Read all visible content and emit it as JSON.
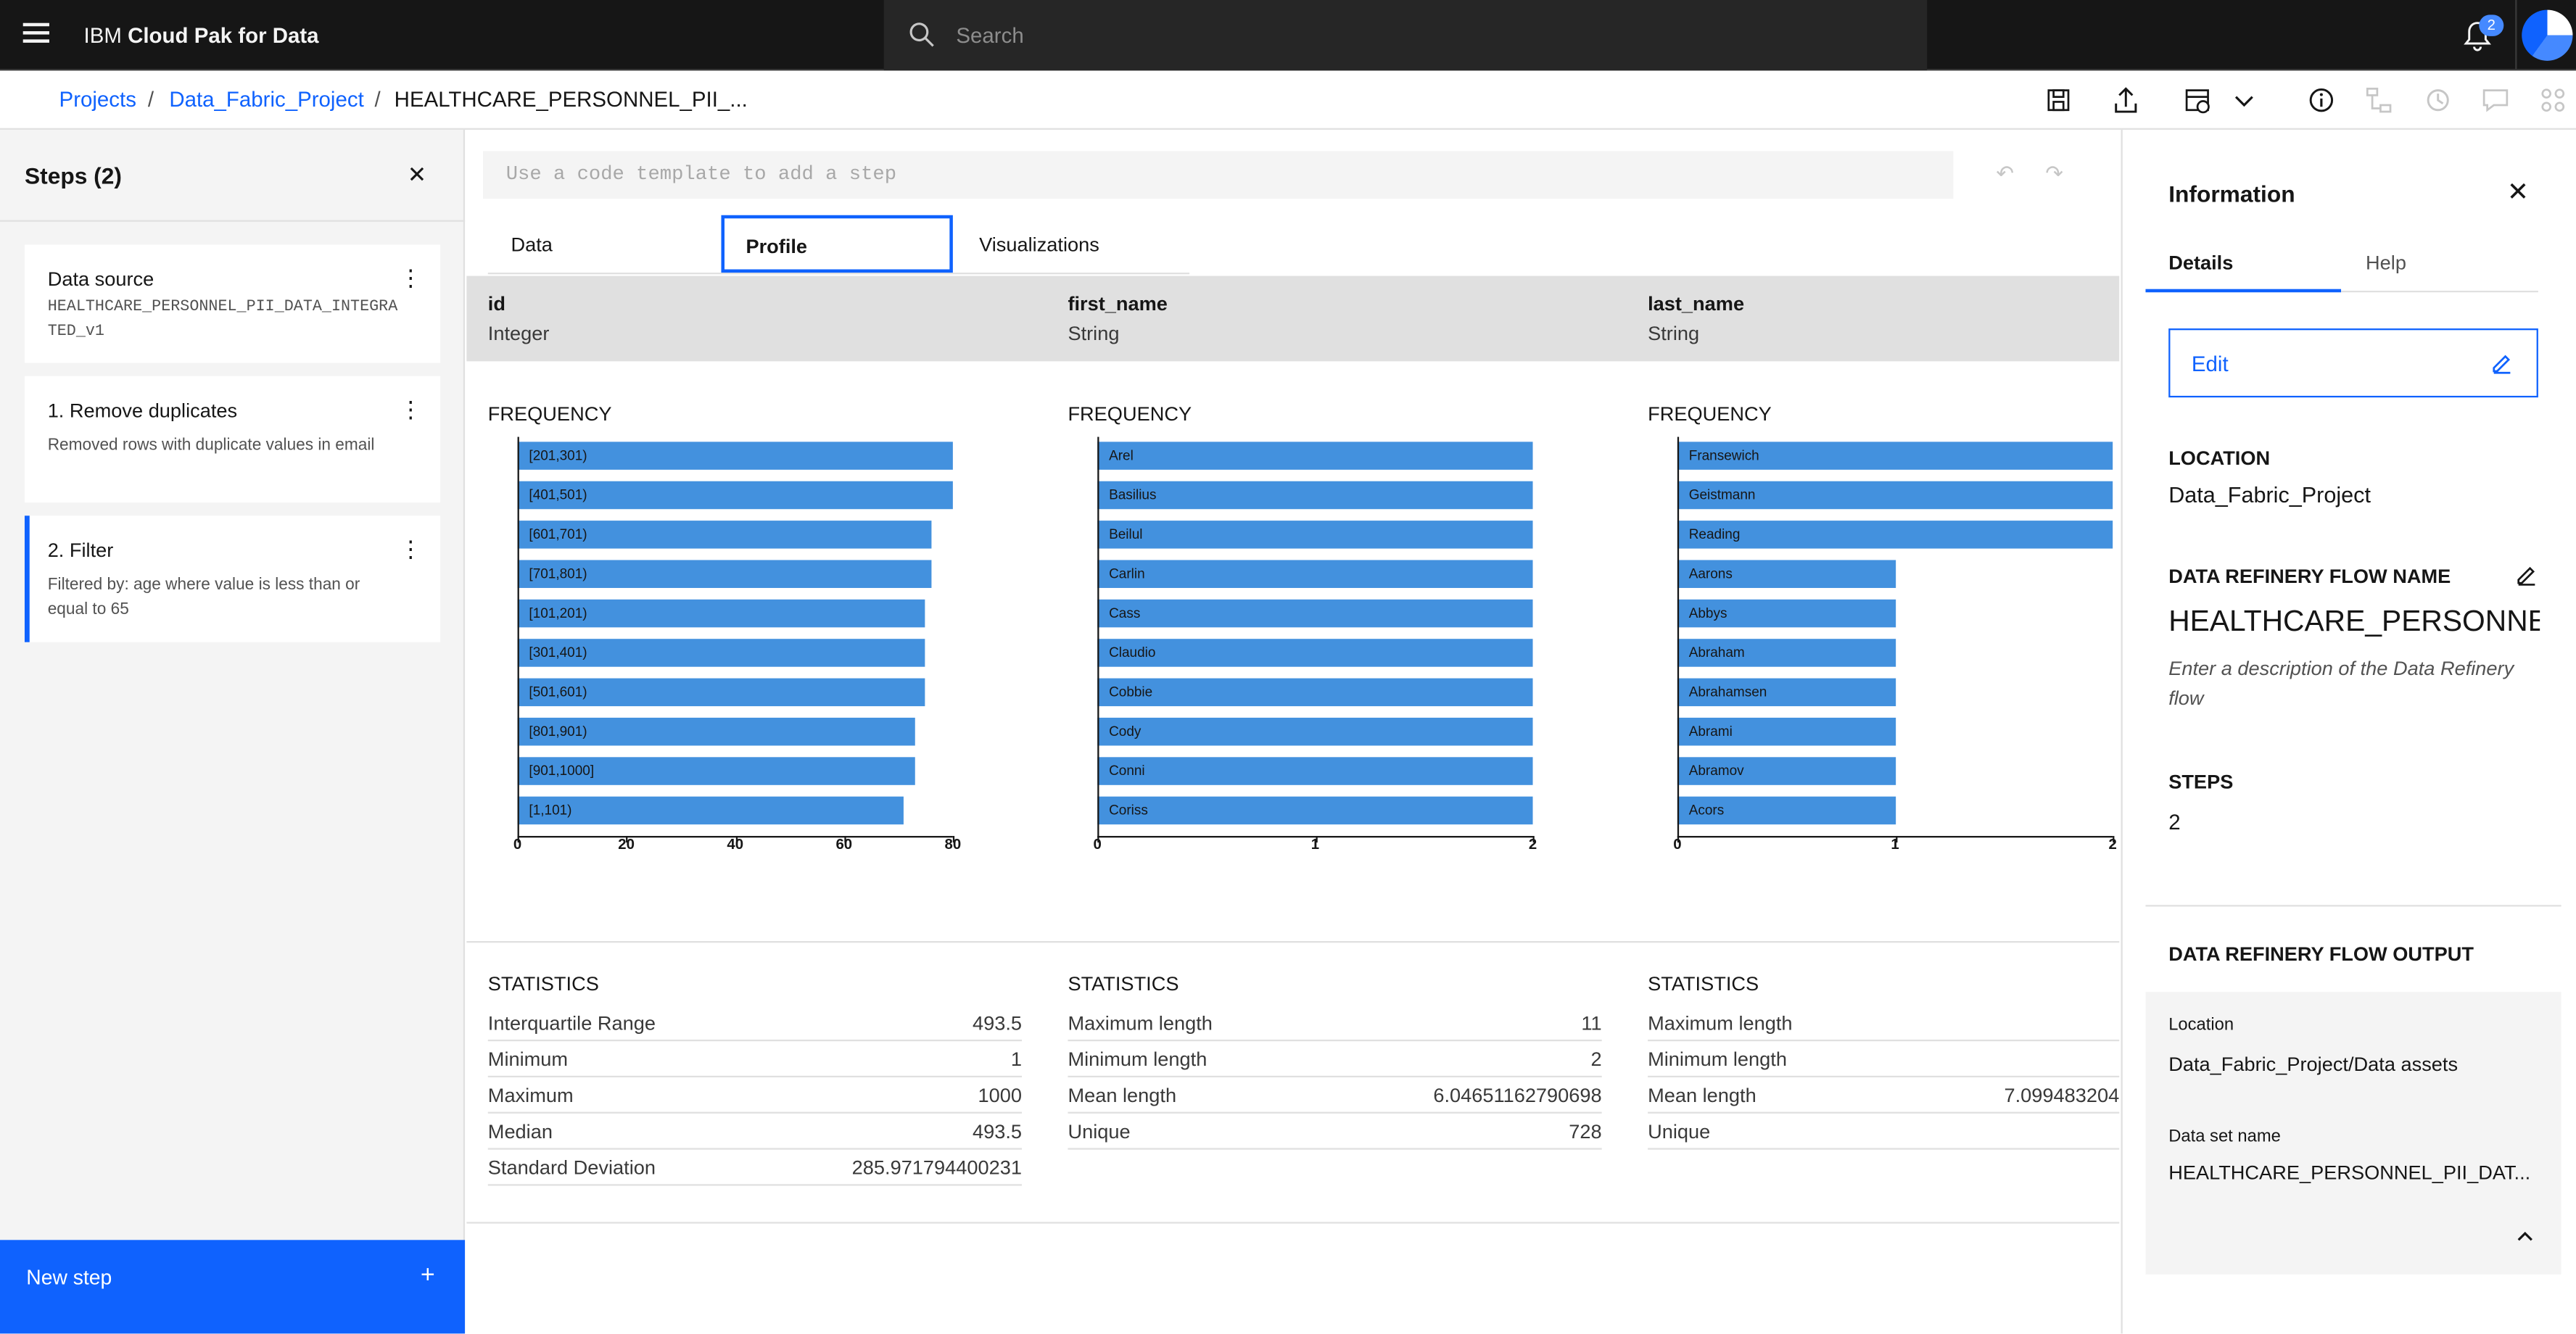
{
  "header": {
    "brand_prefix": "IBM ",
    "brand_name": "Cloud Pak for Data",
    "search_placeholder": "Search",
    "notification_count": "2"
  },
  "breadcrumb": {
    "items": [
      "Projects",
      "Data_Fabric_Project"
    ],
    "separator": "/",
    "current": "HEALTHCARE_PERSONNEL_PII_..."
  },
  "steps_panel": {
    "title": "Steps (2)",
    "cards": [
      {
        "title": "Data source",
        "desc": "HEALTHCARE_PERSONNEL_PII_DATA_INTEGRATED_v1"
      },
      {
        "title": "1. Remove duplicates",
        "desc": "Removed rows with duplicate values in email"
      },
      {
        "title": "2. Filter",
        "desc": "Filtered by: age where value is less than or equal to 65"
      }
    ],
    "new_step": "New step"
  },
  "code_template_placeholder": "Use a code template to add a step",
  "tabs": [
    "Data",
    "Profile",
    "Visualizations"
  ],
  "frequency_label": "FREQUENCY",
  "statistics_label": "STATISTICS",
  "columns": [
    {
      "name": "id",
      "type": "Integer",
      "freq": {
        "max": 80,
        "ticks": [
          0,
          20,
          40,
          60,
          80
        ],
        "labels": [
          "[201,301)",
          "[401,501)",
          "[601,701)",
          "[701,801)",
          "[101,201)",
          "[301,401)",
          "[501,601)",
          "[801,901)",
          "[901,1000]",
          "[1,101)"
        ],
        "values": [
          80,
          80,
          76,
          76,
          75,
          75,
          75,
          73,
          73,
          71
        ]
      },
      "stats": [
        [
          "Interquartile Range",
          "493.5"
        ],
        [
          "Minimum",
          "1"
        ],
        [
          "Maximum",
          "1000"
        ],
        [
          "Median",
          "493.5"
        ],
        [
          "Standard Deviation",
          "285.971794400231"
        ]
      ]
    },
    {
      "name": "first_name",
      "type": "String",
      "freq": {
        "max": 2,
        "ticks": [
          0,
          1,
          2
        ],
        "labels": [
          "Arel",
          "Basilius",
          "Beilul",
          "Carlin",
          "Cass",
          "Claudio",
          "Cobbie",
          "Cody",
          "Conni",
          "Coriss"
        ],
        "values": [
          2,
          2,
          2,
          2,
          2,
          2,
          2,
          2,
          2,
          2
        ]
      },
      "stats": [
        [
          "Maximum length",
          "11"
        ],
        [
          "Minimum length",
          "2"
        ],
        [
          "Mean length",
          "6.04651162790698"
        ],
        [
          "Unique",
          "728"
        ]
      ]
    },
    {
      "name": "last_name",
      "type": "String",
      "freq": {
        "max": 2,
        "ticks": [
          0,
          1,
          2
        ],
        "labels": [
          "Fransewich",
          "Geistmann",
          "Reading",
          "Aarons",
          "Abbys",
          "Abraham",
          "Abrahamsen",
          "Abrami",
          "Abramov",
          "Acors"
        ],
        "values": [
          2,
          2,
          2,
          1,
          1,
          1,
          1,
          1,
          1,
          1
        ]
      },
      "stats": [
        [
          "Maximum length",
          ""
        ],
        [
          "Minimum length",
          ""
        ],
        [
          "Mean length",
          "7.099483204"
        ],
        [
          "Unique",
          ""
        ]
      ]
    }
  ],
  "info_panel": {
    "title": "Information",
    "tabs": [
      "Details",
      "Help"
    ],
    "edit": "Edit",
    "location_label": "LOCATION",
    "location_value": "Data_Fabric_Project",
    "flow_name_label": "DATA REFINERY FLOW NAME",
    "flow_name_value": "HEALTHCARE_PERSONNE...",
    "description_placeholder": "Enter a description of the Data Refinery flow",
    "steps_label": "STEPS",
    "steps_value": "2",
    "output_label": "DATA REFINERY FLOW OUTPUT",
    "output_location_label": "Location",
    "output_location_value": "Data_Fabric_Project/Data assets",
    "dataset_name_label": "Data set name",
    "dataset_name_value": "HEALTHCARE_PERSONNEL_PII_DAT..."
  }
}
